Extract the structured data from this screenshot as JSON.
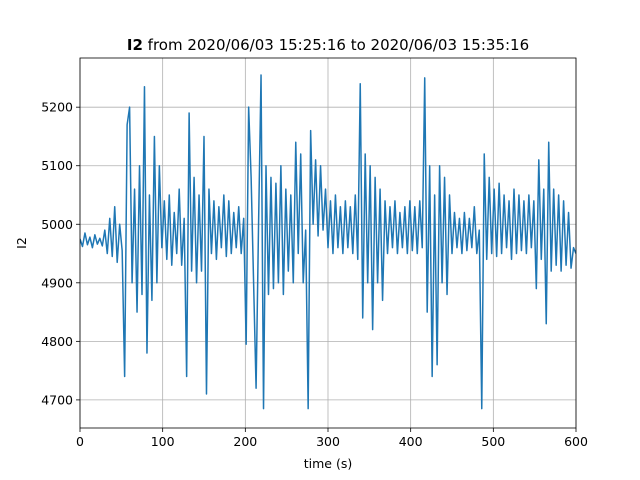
{
  "chart_data": {
    "type": "line",
    "title": {
      "variable": "I2",
      "text": "from 2020/06/03 15:25:16 to 2020/06/03 15:35:16"
    },
    "xlabel": "time (s)",
    "ylabel": "I2",
    "xlim": [
      0,
      600
    ],
    "ylim": [
      4652,
      5284
    ],
    "xticks": [
      0,
      100,
      200,
      300,
      400,
      500,
      600
    ],
    "yticks": [
      4700,
      4800,
      4900,
      5000,
      5100,
      5200
    ],
    "grid": true,
    "x": [
      0,
      3,
      6,
      9,
      12,
      15,
      18,
      21,
      24,
      27,
      30,
      33,
      36,
      39,
      42,
      45,
      48,
      51,
      54,
      57,
      60,
      63,
      66,
      69,
      72,
      75,
      78,
      81,
      84,
      87,
      90,
      93,
      96,
      99,
      102,
      105,
      108,
      111,
      114,
      117,
      120,
      123,
      126,
      129,
      132,
      135,
      138,
      141,
      144,
      147,
      150,
      153,
      156,
      159,
      162,
      165,
      168,
      171,
      174,
      177,
      180,
      183,
      186,
      189,
      192,
      195,
      198,
      201,
      204,
      207,
      210,
      213,
      216,
      219,
      222,
      225,
      228,
      231,
      234,
      237,
      240,
      243,
      246,
      249,
      252,
      255,
      258,
      261,
      264,
      267,
      270,
      273,
      276,
      279,
      282,
      285,
      288,
      291,
      294,
      297,
      300,
      303,
      306,
      309,
      312,
      315,
      318,
      321,
      324,
      327,
      330,
      333,
      336,
      339,
      342,
      345,
      348,
      351,
      354,
      357,
      360,
      363,
      366,
      369,
      372,
      375,
      378,
      381,
      384,
      387,
      390,
      393,
      396,
      399,
      402,
      405,
      408,
      411,
      414,
      417,
      420,
      423,
      426,
      429,
      432,
      435,
      438,
      441,
      444,
      447,
      450,
      453,
      456,
      459,
      462,
      465,
      468,
      471,
      474,
      477,
      480,
      483,
      486,
      489,
      492,
      495,
      498,
      501,
      504,
      507,
      510,
      513,
      516,
      519,
      522,
      525,
      528,
      531,
      534,
      537,
      540,
      543,
      546,
      549,
      552,
      555,
      558,
      561,
      564,
      567,
      570,
      573,
      576,
      579,
      582,
      585,
      588,
      591,
      594,
      597,
      600
    ],
    "series": [
      {
        "name": "I2",
        "color": "#1f77b4",
        "values": [
          4975,
          4962,
          4985,
          4965,
          4978,
          4960,
          4982,
          4966,
          4976,
          4963,
          4990,
          4950,
          5010,
          4945,
          5030,
          4935,
          5000,
          4955,
          4740,
          5170,
          5200,
          4900,
          5060,
          4850,
          5100,
          4880,
          5235,
          4780,
          5050,
          4870,
          5150,
          4900,
          5100,
          4960,
          5040,
          4940,
          5050,
          4930,
          5020,
          4950,
          5060,
          4930,
          5010,
          4740,
          5190,
          4920,
          5080,
          4900,
          5050,
          4920,
          5150,
          4710,
          5060,
          4950,
          5040,
          4940,
          5030,
          4960,
          5050,
          4945,
          5040,
          4950,
          5020,
          4960,
          5030,
          4950,
          5010,
          4795,
          5200,
          5080,
          4900,
          4720,
          5000,
          5255,
          4685,
          5100,
          4880,
          5080,
          4890,
          5070,
          4900,
          5100,
          4880,
          5060,
          4920,
          5050,
          4900,
          5140,
          4950,
          5120,
          4900,
          4990,
          4685,
          5160,
          5000,
          5110,
          4980,
          5100,
          4990,
          5060,
          4960,
          5040,
          4950,
          5050,
          4960,
          5030,
          4950,
          5040,
          4960,
          5030,
          4950,
          5050,
          4940,
          5240,
          4840,
          5120,
          4900,
          5100,
          4820,
          5080,
          4900,
          5060,
          4870,
          5040,
          4950,
          5030,
          4960,
          5040,
          4950,
          5020,
          4960,
          5030,
          4950,
          5040,
          4955,
          5030,
          4950,
          5040,
          4960,
          5250,
          4850,
          5100,
          4740,
          5050,
          4760,
          5100,
          4900,
          5080,
          4880,
          5050,
          4950,
          5020,
          4960,
          5010,
          4950,
          5020,
          4955,
          5010,
          4960,
          5030,
          4950,
          4990,
          4685,
          5120,
          4940,
          5080,
          4950,
          5060,
          4945,
          5070,
          4950,
          5050,
          4960,
          5040,
          4940,
          5060,
          4950,
          5050,
          4955,
          5040,
          4950,
          5050,
          4960,
          5040,
          4890,
          5110,
          4940,
          5060,
          4830,
          5140,
          4920,
          5060,
          4930,
          5050,
          4920,
          5040,
          4930,
          5020,
          4925,
          4960,
          4950
        ]
      }
    ]
  }
}
